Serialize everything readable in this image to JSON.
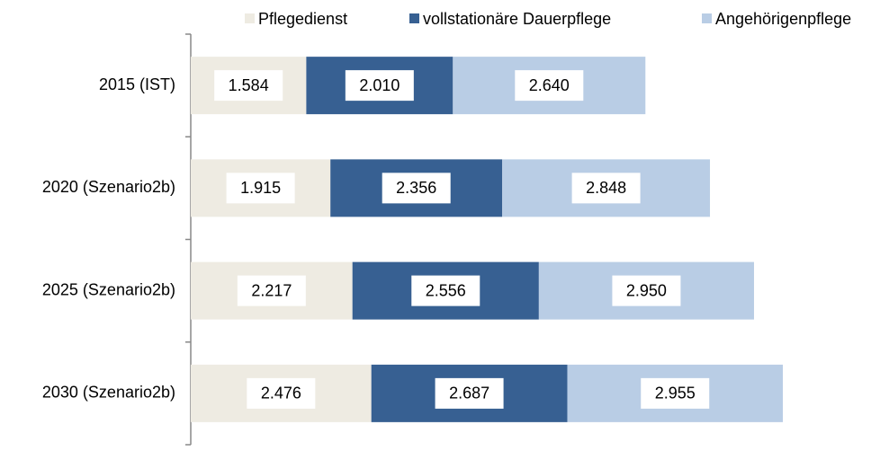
{
  "chart_data": {
    "type": "stacked-bar-horizontal",
    "categories": [
      "2015 (IST)",
      "2020 (Szenario2b)",
      "2025 (Szenario2b)",
      "2030 (Szenario2b)"
    ],
    "series": [
      {
        "name": "Pflegedienst",
        "color": "#eeebe2",
        "values": [
          1584,
          1915,
          2217,
          2476
        ],
        "value_labels": [
          "1.584",
          "1.915",
          "2.217",
          "2.476"
        ]
      },
      {
        "name": "vollstationäre Dauerpflege",
        "color": "#376092",
        "values": [
          2010,
          2356,
          2556,
          2687
        ],
        "value_labels": [
          "2.010",
          "2.356",
          "2.556",
          "2.687"
        ]
      },
      {
        "name": "Angehörigenpflege",
        "color": "#b9cde5",
        "values": [
          2640,
          2848,
          2950,
          2955
        ],
        "value_labels": [
          "2.640",
          "2.848",
          "2.950",
          "2.955"
        ]
      }
    ],
    "legend": "top"
  }
}
